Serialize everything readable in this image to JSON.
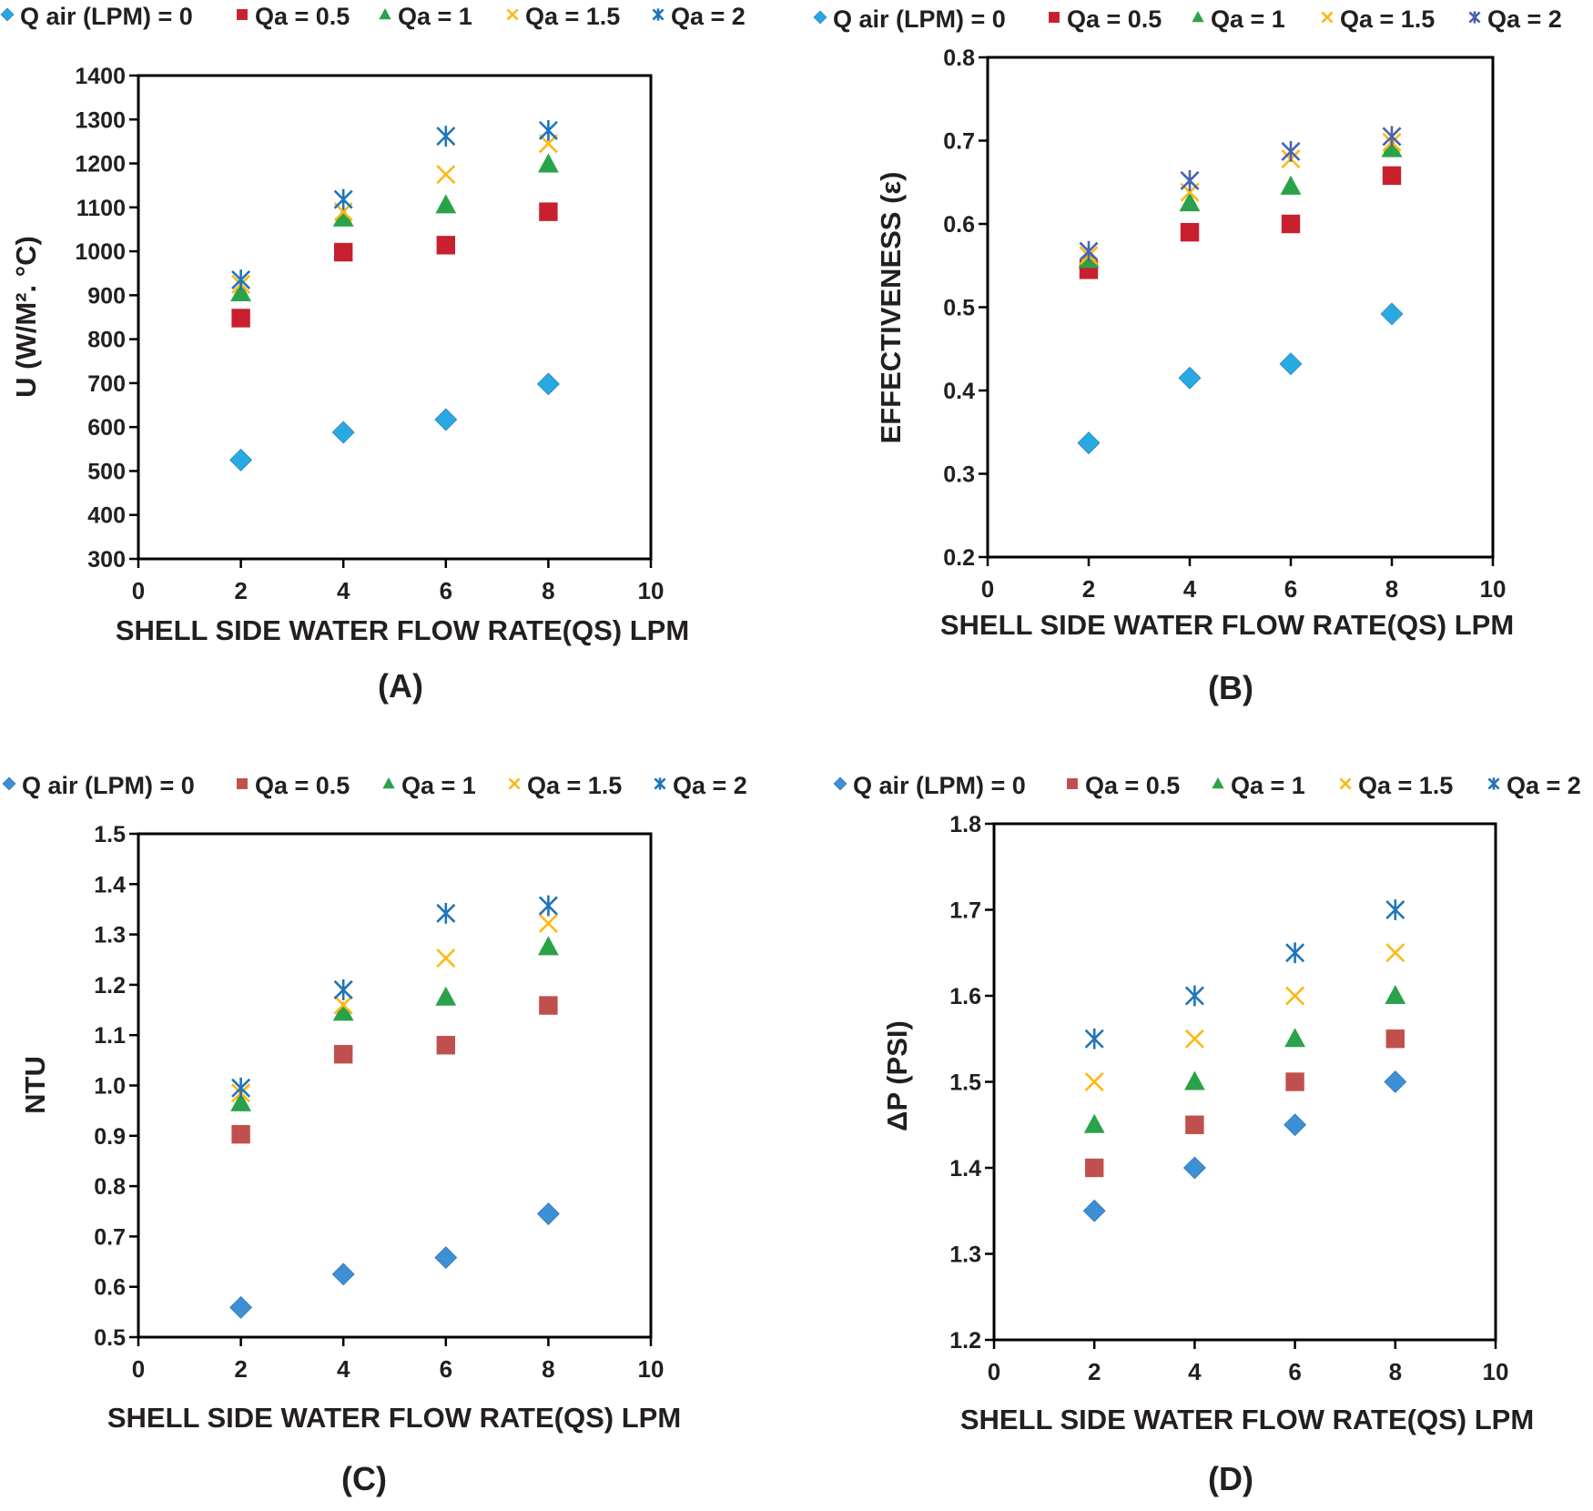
{
  "colors": {
    "q0": "#27aae1",
    "qa05": "#c8202f",
    "qa1": "#2aa249",
    "qa15": "#fdb813",
    "qa2": "#1f75ba"
  },
  "chart_data": [
    {
      "type": "scatter",
      "panel_label": "(A)",
      "xlabel": "SHELL SIDE WATER FLOW RATE(QS) LPM",
      "ylabel": "U (W/M². °C)",
      "xlim": [
        0,
        10
      ],
      "ylim": [
        300,
        1400
      ],
      "x_ticks": [
        "0",
        "2",
        "4",
        "6",
        "8",
        "10"
      ],
      "y_ticks": [
        "300",
        "400",
        "500",
        "600",
        "700",
        "800",
        "900",
        "1000",
        "1100",
        "1200",
        "1300",
        "1400"
      ],
      "legend": [
        "Q air (LPM) = 0",
        "Qa = 0.5",
        "Qa = 1",
        "Qa = 1.5",
        "Qa = 2"
      ],
      "legend_position": "top",
      "series": [
        {
          "name": "Q air (LPM) = 0",
          "marker": "diamond",
          "color": "#27aae1",
          "x": [
            2,
            4,
            6,
            8
          ],
          "values": [
            525,
            588,
            617,
            698
          ]
        },
        {
          "name": "Qa = 0.5",
          "marker": "square",
          "color": "#c8202f",
          "x": [
            2,
            4,
            6,
            8
          ],
          "values": [
            848,
            998,
            1014,
            1090
          ]
        },
        {
          "name": "Qa = 1",
          "marker": "triangle",
          "color": "#2aa249",
          "x": [
            2,
            4,
            6,
            8
          ],
          "values": [
            905,
            1075,
            1105,
            1198
          ]
        },
        {
          "name": "Qa = 1.5",
          "marker": "x",
          "color": "#fdb813",
          "x": [
            2,
            4,
            6,
            8
          ],
          "values": [
            925,
            1090,
            1175,
            1245
          ]
        },
        {
          "name": "Qa = 2",
          "marker": "star",
          "color": "#1f75ba",
          "x": [
            2,
            4,
            6,
            8
          ],
          "values": [
            935,
            1118,
            1262,
            1275
          ]
        }
      ]
    },
    {
      "type": "scatter",
      "panel_label": "(B)",
      "xlabel": "SHELL SIDE WATER FLOW RATE(QS) LPM",
      "ylabel": "EFFECTIVENESS (ε)",
      "xlim": [
        0,
        10
      ],
      "ylim": [
        0.2,
        0.8
      ],
      "x_ticks": [
        "0",
        "2",
        "4",
        "6",
        "8",
        "10"
      ],
      "y_ticks": [
        "0.2",
        "0.3",
        "0.4",
        "0.5",
        "0.6",
        "0.7",
        "0.8"
      ],
      "legend": [
        "Q air (LPM) = 0",
        "Qa = 0.5",
        "Qa = 1",
        "Qa = 1.5",
        "Qa = 2"
      ],
      "legend_position": "top",
      "series": [
        {
          "name": "Q air (LPM) = 0",
          "marker": "diamond",
          "color": "#27aae1",
          "x": [
            2,
            4,
            6,
            8
          ],
          "values": [
            0.337,
            0.415,
            0.432,
            0.492
          ]
        },
        {
          "name": "Qa = 0.5",
          "marker": "square",
          "color": "#c8202f",
          "x": [
            2,
            4,
            6,
            8
          ],
          "values": [
            0.545,
            0.59,
            0.6,
            0.658
          ]
        },
        {
          "name": "Qa = 1",
          "marker": "triangle",
          "color": "#2aa249",
          "x": [
            2,
            4,
            6,
            8
          ],
          "values": [
            0.557,
            0.625,
            0.645,
            0.69
          ]
        },
        {
          "name": "Qa = 1.5",
          "marker": "x",
          "color": "#fdb813",
          "x": [
            2,
            4,
            6,
            8
          ],
          "values": [
            0.562,
            0.638,
            0.678,
            0.698
          ]
        },
        {
          "name": "Qa = 2",
          "marker": "star",
          "color": "#4a63ad",
          "x": [
            2,
            4,
            6,
            8
          ],
          "values": [
            0.567,
            0.652,
            0.687,
            0.705
          ]
        }
      ]
    },
    {
      "type": "scatter",
      "panel_label": "(C)",
      "xlabel": "SHELL SIDE WATER FLOW RATE(QS) LPM",
      "ylabel": "NTU",
      "xlim": [
        0,
        10
      ],
      "ylim": [
        0.5,
        1.5
      ],
      "x_ticks": [
        "0",
        "2",
        "4",
        "6",
        "8",
        "10"
      ],
      "y_ticks": [
        "0.5",
        "0.6",
        "0.7",
        "0.8",
        "0.9",
        "1.0",
        "1.1",
        "1.2",
        "1.3",
        "1.4",
        "1.5"
      ],
      "legend": [
        "Q air (LPM) = 0",
        "Qa = 0.5",
        "Qa = 1",
        "Qa = 1.5",
        "Qa = 2"
      ],
      "legend_position": "top",
      "series": [
        {
          "name": "Q air (LPM) = 0",
          "marker": "diamond",
          "color": "#3d8fd6",
          "x": [
            2,
            4,
            6,
            8
          ],
          "values": [
            0.559,
            0.625,
            0.658,
            0.745
          ]
        },
        {
          "name": "Qa = 0.5",
          "marker": "square",
          "color": "#c0504d",
          "x": [
            2,
            4,
            6,
            8
          ],
          "values": [
            0.903,
            1.062,
            1.08,
            1.159
          ]
        },
        {
          "name": "Qa = 1",
          "marker": "triangle",
          "color": "#2aa249",
          "x": [
            2,
            4,
            6,
            8
          ],
          "values": [
            0.965,
            1.145,
            1.175,
            1.275
          ]
        },
        {
          "name": "Qa = 1.5",
          "marker": "x",
          "color": "#fdb813",
          "x": [
            2,
            4,
            6,
            8
          ],
          "values": [
            0.985,
            1.16,
            1.253,
            1.322
          ]
        },
        {
          "name": "Qa = 2",
          "marker": "star",
          "color": "#1f75ba",
          "x": [
            2,
            4,
            6,
            8
          ],
          "values": [
            0.995,
            1.19,
            1.342,
            1.357
          ]
        }
      ]
    },
    {
      "type": "scatter",
      "panel_label": "(D)",
      "xlabel": "SHELL SIDE WATER FLOW RATE(QS) LPM",
      "ylabel": "ΔP (PSI)",
      "xlim": [
        0,
        10
      ],
      "ylim": [
        1.2,
        1.8
      ],
      "x_ticks": [
        "0",
        "2",
        "4",
        "6",
        "8",
        "10"
      ],
      "y_ticks": [
        "1.2",
        "1.3",
        "1.4",
        "1.5",
        "1.6",
        "1.7",
        "1.8"
      ],
      "legend": [
        "Q air (LPM) = 0",
        "Qa = 0.5",
        "Qa = 1",
        "Qa = 1.5",
        "Qa = 2"
      ],
      "legend_position": "top",
      "series": [
        {
          "name": "Q air (LPM) = 0",
          "marker": "diamond",
          "color": "#3d8fd6",
          "x": [
            2,
            4,
            6,
            8
          ],
          "values": [
            1.35,
            1.4,
            1.45,
            1.5
          ]
        },
        {
          "name": "Qa = 0.5",
          "marker": "square",
          "color": "#c0504d",
          "x": [
            2,
            4,
            6,
            8
          ],
          "values": [
            1.4,
            1.45,
            1.5,
            1.55
          ]
        },
        {
          "name": "Qa = 1",
          "marker": "triangle",
          "color": "#2aa249",
          "x": [
            2,
            4,
            6,
            8
          ],
          "values": [
            1.45,
            1.5,
            1.55,
            1.6
          ]
        },
        {
          "name": "Qa = 1.5",
          "marker": "x",
          "color": "#fdb813",
          "x": [
            2,
            4,
            6,
            8
          ],
          "values": [
            1.5,
            1.55,
            1.6,
            1.65
          ]
        },
        {
          "name": "Qa = 2",
          "marker": "star",
          "color": "#1f75ba",
          "x": [
            2,
            4,
            6,
            8
          ],
          "values": [
            1.55,
            1.6,
            1.65,
            1.7
          ]
        }
      ]
    }
  ]
}
